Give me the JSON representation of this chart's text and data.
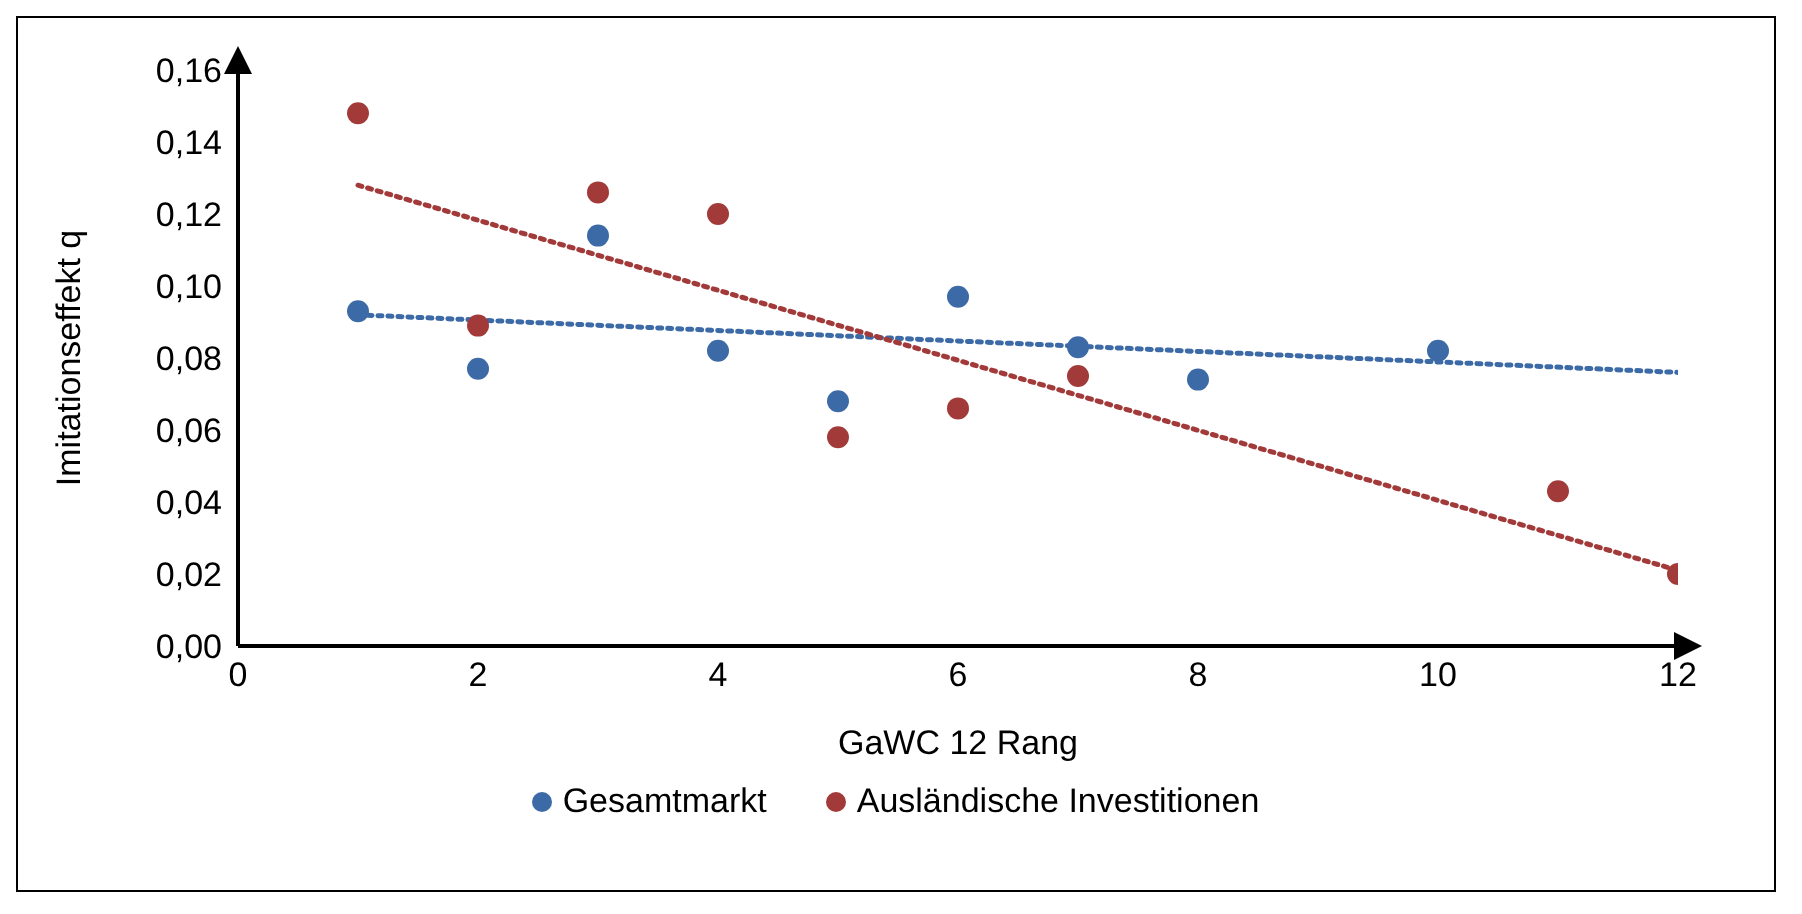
{
  "chart_data": {
    "type": "scatter",
    "xlabel": "GaWC 12 Rang",
    "ylabel": "Imitationseffekt q",
    "xlim": [
      0,
      12
    ],
    "xticks": [
      0,
      2,
      4,
      6,
      8,
      10,
      12
    ],
    "ylim": [
      0,
      0.16
    ],
    "yticks": [
      {
        "value": 0,
        "label": "0,00"
      },
      {
        "value": 0.02,
        "label": "0,02"
      },
      {
        "value": 0.04,
        "label": "0,04"
      },
      {
        "value": 0.06,
        "label": "0,06"
      },
      {
        "value": 0.08,
        "label": "0,08"
      },
      {
        "value": 0.1,
        "label": "0,10"
      },
      {
        "value": 0.12,
        "label": "0,12"
      },
      {
        "value": 0.14,
        "label": "0,14"
      },
      {
        "value": 0.16,
        "label": "0,16"
      }
    ],
    "grid": false,
    "legend": "bottom",
    "marker": "circle",
    "series": [
      {
        "name": "Gesamtmarkt",
        "color": "#3c6aa6",
        "x": [
          1,
          2,
          3,
          4,
          5,
          6,
          7,
          8,
          10
        ],
        "values": [
          0.093,
          0.077,
          0.114,
          0.082,
          0.068,
          0.097,
          0.083,
          0.074,
          0.082
        ]
      },
      {
        "name": "Ausländische Investitionen",
        "color": "#a33a3a",
        "x": [
          1,
          2,
          3,
          4,
          5,
          6,
          7,
          11,
          12
        ],
        "values": [
          0.148,
          0.089,
          0.126,
          0.12,
          0.058,
          0.066,
          0.075,
          0.043,
          0.02
        ]
      },
      {
        "type": "line",
        "color": "#3c6aa6",
        "line_style": "dotted",
        "marker": "none",
        "x": [
          1,
          12
        ],
        "values": [
          0.092,
          0.076
        ]
      },
      {
        "type": "line",
        "color": "#a33a3a",
        "line_style": "dotted",
        "marker": "none",
        "x": [
          1,
          12
        ],
        "values": [
          0.128,
          0.021
        ]
      }
    ]
  }
}
